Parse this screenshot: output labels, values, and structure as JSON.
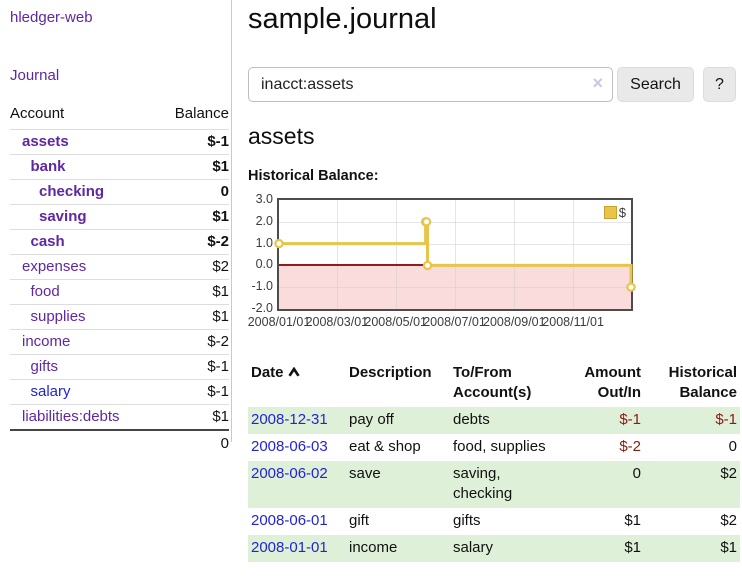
{
  "sidebar": {
    "brand": "hledger-web",
    "journal_link": "Journal",
    "accounts_header": {
      "account": "Account",
      "balance": "Balance"
    },
    "accounts": [
      {
        "name": "assets",
        "balance": "$-1",
        "indent": 0,
        "bold": true
      },
      {
        "name": "bank",
        "balance": "$1",
        "indent": 1,
        "bold": true
      },
      {
        "name": "checking",
        "balance": "0",
        "indent": 2,
        "bold": true
      },
      {
        "name": "saving",
        "balance": "$1",
        "indent": 2,
        "bold": true
      },
      {
        "name": "cash",
        "balance": "$-2",
        "indent": 1,
        "bold": true
      },
      {
        "name": "expenses",
        "balance": "$2",
        "indent": 0
      },
      {
        "name": "food",
        "balance": "$1",
        "indent": 1
      },
      {
        "name": "supplies",
        "balance": "$1",
        "indent": 1
      },
      {
        "name": "income",
        "balance": "$-2",
        "indent": 0,
        "muted": true
      },
      {
        "name": "gifts",
        "balance": "$-1",
        "indent": 1,
        "muted": true
      },
      {
        "name": "salary",
        "balance": "$-1",
        "indent": 1,
        "muted": true,
        "blue": true
      },
      {
        "name": "liabilities:debts",
        "balance": "$1",
        "indent": 0
      }
    ],
    "total": "0"
  },
  "main": {
    "title": "sample.journal",
    "search": {
      "value": "inacct:assets",
      "clear_icon": "×",
      "search_label": "Search",
      "help_label": "?"
    },
    "account_heading": "assets",
    "chart_label": "Historical Balance:"
  },
  "register": {
    "headers": {
      "date": "Date",
      "description": "Description",
      "accounts": "To/From Account(s)",
      "amount": "Amount Out/In",
      "balance": "Historical Balance"
    },
    "rows": [
      {
        "date": "2008-12-31",
        "description": "pay off",
        "accounts": "debts",
        "amount": "$-1",
        "balance": "$-1",
        "shade": true
      },
      {
        "date": "2008-06-03",
        "description": "eat & shop",
        "accounts": "food, supplies",
        "amount": "$-2",
        "balance": "0"
      },
      {
        "date": "2008-06-02",
        "description": "save",
        "accounts": "saving, checking",
        "amount": "0",
        "balance": "$2",
        "shade": true
      },
      {
        "date": "2008-06-01",
        "description": "gift",
        "accounts": "gifts",
        "amount": "$1",
        "balance": "$2"
      },
      {
        "date": "2008-01-01",
        "description": "income",
        "accounts": "salary",
        "amount": "$1",
        "balance": "$1",
        "shade": true
      }
    ]
  },
  "chart_data": {
    "type": "line",
    "title": "Historical Balance:",
    "step": true,
    "x_range_days": 365,
    "ylim": [
      -2,
      3
    ],
    "y_ticks": [
      3,
      2,
      1,
      0,
      -1,
      -2
    ],
    "y_tick_labels": [
      "3.0",
      "2.0",
      "1.0",
      "0.0",
      "-1.0",
      "-2.0"
    ],
    "x_ticks": [
      {
        "label": "2008/01/01",
        "day": 0
      },
      {
        "label": "2008/03/01",
        "day": 60
      },
      {
        "label": "2008/05/01",
        "day": 121
      },
      {
        "label": "2008/07/01",
        "day": 182
      },
      {
        "label": "2008/09/01",
        "day": 244
      },
      {
        "label": "2008/11/01",
        "day": 305
      }
    ],
    "series": [
      {
        "name": "$",
        "color": "#e8c44a",
        "points": [
          {
            "date": "2008-01-01",
            "day": 0,
            "value": 1
          },
          {
            "date": "2008-06-01",
            "day": 152,
            "value": 2
          },
          {
            "date": "2008-06-02",
            "day": 153,
            "value": 2
          },
          {
            "date": "2008-06-03",
            "day": 154,
            "value": 0
          },
          {
            "date": "2008-12-31",
            "day": 365,
            "value": -1
          }
        ]
      }
    ],
    "legend_position": "top-right",
    "grid": true,
    "negative_region_color": "#fadcdc",
    "zero_line_color": "#8f1d1d"
  },
  "colors": {
    "link_purple": "#5f27a3",
    "link_blue": "#2323d6",
    "negative_red": "#8b1a10",
    "negative_soft_red": "#bd6a66",
    "row_stripe_green": "#dff0d8",
    "series_yellow": "#e8c44a"
  }
}
